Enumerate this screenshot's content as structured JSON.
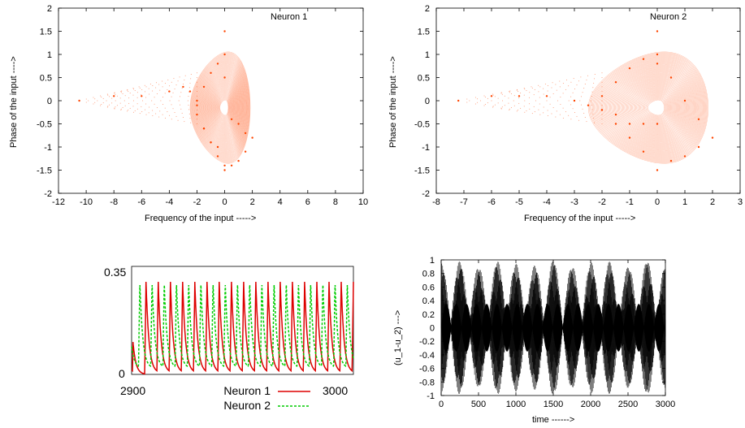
{
  "chart_data": [
    {
      "type": "scatter",
      "title": "Neuron 1",
      "xlabel": "Frequency of the input ----->",
      "ylabel": "Phase of the input ---->",
      "xlim": [
        -12,
        10
      ],
      "ylim": [
        -2,
        2
      ],
      "xticks": [
        "-12",
        "-10",
        "-8",
        "-6",
        "-4",
        "-2",
        "0",
        "2",
        "4",
        "6",
        "8",
        "10"
      ],
      "yticks": [
        "-2",
        "-1.5",
        "-1",
        "-0.5",
        "0",
        "0.5",
        "1",
        "1.5",
        "2"
      ],
      "series_color": "#ff4500",
      "grid": false,
      "x": [
        -10.5,
        -8.0,
        -6.0,
        -4.0,
        -3.0,
        -2.5,
        -2.0,
        -1.5,
        -1.0,
        -0.5,
        0.0,
        0.0,
        0.0,
        0.5,
        1.0,
        1.5,
        2.0,
        1.5,
        1.0,
        0.5,
        0.0,
        -0.5,
        -1.0,
        -1.5,
        -2.0,
        -2.0,
        -1.5,
        -1.0,
        -0.5,
        0.0
      ],
      "y": [
        0.0,
        0.1,
        0.1,
        0.2,
        0.3,
        0.2,
        -0.1,
        -0.6,
        -0.9,
        -1.2,
        -1.5,
        1.5,
        0.5,
        -0.4,
        -0.5,
        -0.7,
        -0.8,
        -1.1,
        -1.3,
        -1.4,
        -1.4,
        0.8,
        0.6,
        0.3,
        0.0,
        -0.3,
        -0.6,
        -0.9,
        -1.0,
        1.0
      ]
    },
    {
      "type": "scatter",
      "title": "Neuron 2",
      "xlabel": "Frequency of the input ----->",
      "ylabel": "Phase of the input ---->",
      "xlim": [
        -8,
        3
      ],
      "ylim": [
        -2,
        2
      ],
      "xticks": [
        "-8",
        "-7",
        "-6",
        "-5",
        "-4",
        "-3",
        "-2",
        "-1",
        "0",
        "1",
        "2",
        "3"
      ],
      "yticks": [
        "-2",
        "-1.5",
        "-1",
        "-0.5",
        "0",
        "0.5",
        "1",
        "1.5",
        "2"
      ],
      "series_color": "#ff4500",
      "grid": false,
      "x": [
        -7.2,
        -6.0,
        -5.0,
        -4.0,
        -3.0,
        -2.5,
        -2.0,
        -1.5,
        -1.0,
        -0.5,
        0.0,
        0.0,
        0.0,
        0.5,
        1.0,
        1.5,
        2.0,
        1.5,
        1.0,
        0.5,
        0.0,
        -0.5,
        -1.0,
        -1.5,
        -2.0,
        -2.0,
        -1.5,
        -1.0,
        -0.5,
        0.0
      ],
      "y": [
        0.0,
        0.1,
        0.1,
        0.1,
        0.0,
        -0.1,
        -0.2,
        -0.3,
        -0.5,
        -0.5,
        -0.5,
        1.5,
        0.8,
        0.5,
        0.0,
        -0.4,
        -0.8,
        -1.0,
        -1.2,
        -1.3,
        -1.5,
        0.9,
        0.7,
        0.4,
        0.1,
        -0.2,
        -0.5,
        -0.8,
        -1.1,
        1.0
      ]
    },
    {
      "type": "line",
      "title": "",
      "xlabel": "",
      "ylabel": "",
      "xlim": [
        2900,
        3000
      ],
      "ylim": [
        0,
        0.35
      ],
      "xticks": [
        "2900",
        "3000"
      ],
      "yticks": [
        "0",
        "0.35"
      ],
      "grid": false,
      "legend_placement": "below",
      "period": 5.5,
      "series": [
        {
          "name": "Neuron 1",
          "color": "#dd0000",
          "style": "solid",
          "first_peak": 2906.5,
          "peak": 0.3,
          "trough": 0.005,
          "start_value": 0.17
        },
        {
          "name": "Neuron 2",
          "color": "#00cc00",
          "style": "dashed",
          "first_peak": 2903.7,
          "peak": 0.3,
          "trough": 0.02,
          "start_value": 0.03
        }
      ]
    },
    {
      "type": "line",
      "title": "",
      "xlabel": "time ------>",
      "ylabel": "(u_1-u_2) --->",
      "xlim": [
        0,
        3000
      ],
      "ylim": [
        -1,
        1
      ],
      "xticks": [
        "0",
        "500",
        "1000",
        "1500",
        "2000",
        "2500",
        "3000"
      ],
      "yticks": [
        "-1",
        "-0.8",
        "-0.6",
        "-0.4",
        "-0.2",
        "0",
        "0.2",
        "0.4",
        "0.6",
        "0.8",
        "1"
      ],
      "grid": false,
      "series_color": "#000000",
      "description_amplitude": [
        -1,
        1
      ]
    }
  ]
}
